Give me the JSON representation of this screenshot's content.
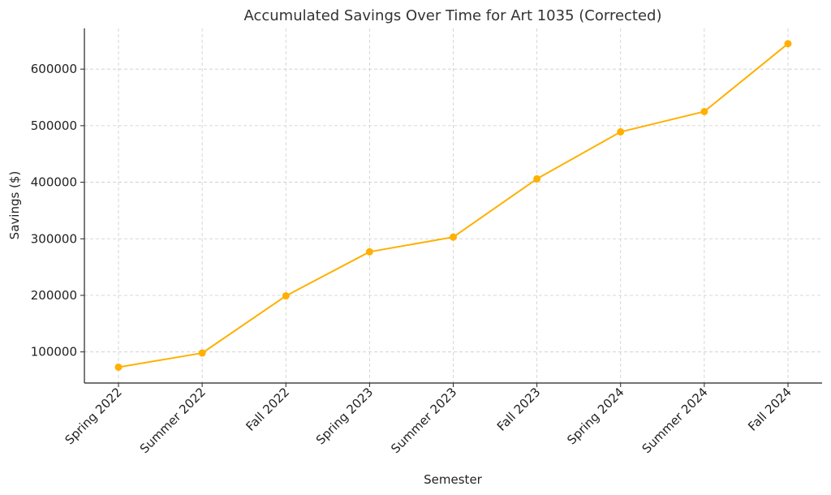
{
  "chart_data": {
    "type": "line",
    "title": "Accumulated Savings Over Time for Art 1035 (Corrected)",
    "xlabel": "Semester",
    "ylabel": "Savings ($)",
    "categories": [
      "Spring 2022",
      "Summer 2022",
      "Fall 2022",
      "Spring 2023",
      "Summer 2023",
      "Fall 2023",
      "Spring 2024",
      "Summer 2024",
      "Fall 2024"
    ],
    "series": [
      {
        "values": [
          73000,
          98000,
          199000,
          277000,
          303000,
          406000,
          489000,
          525000,
          645000
        ],
        "color": "#ffb000"
      }
    ],
    "yticks": [
      100000,
      200000,
      300000,
      400000,
      500000,
      600000
    ],
    "ylim": [
      45000,
      672000
    ],
    "grid": true
  }
}
